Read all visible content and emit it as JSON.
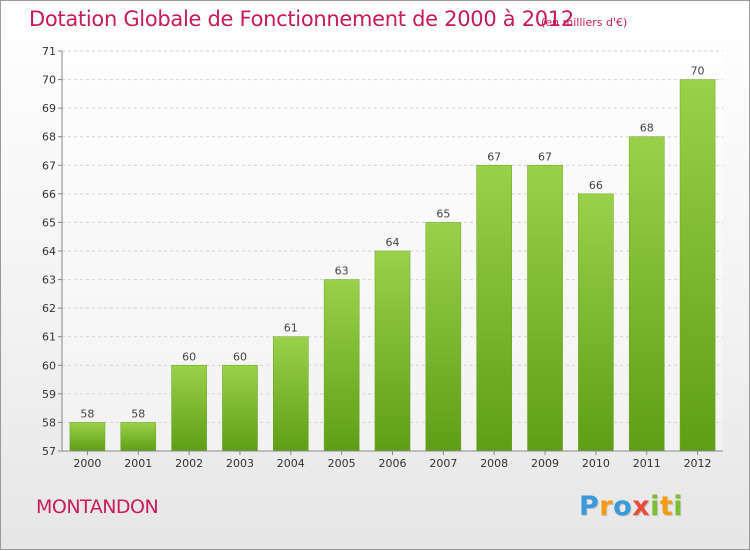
{
  "header": {
    "title": "Dotation Globale de Fonctionnement de 2000 à 2012",
    "subtitle": "(en milliers d'€)"
  },
  "footer": {
    "town": "MONTANDON",
    "logo_letters": [
      "P",
      "r",
      "o",
      "x",
      "i",
      "t",
      "i"
    ],
    "logo_colors": [
      "#3a9ad9",
      "#f39c12",
      "#3a9ad9",
      "#e74c3c",
      "#7cbf2f",
      "#f39c12",
      "#7cbf2f"
    ]
  },
  "chart_data": {
    "type": "bar",
    "title": "Dotation Globale de Fonctionnement de 2000 à 2012",
    "subtitle": "(en milliers d'€)",
    "categories": [
      "2000",
      "2001",
      "2002",
      "2003",
      "2004",
      "2005",
      "2006",
      "2007",
      "2008",
      "2009",
      "2010",
      "2011",
      "2012"
    ],
    "values": [
      58,
      58,
      60,
      60,
      61,
      63,
      64,
      65,
      67,
      67,
      66,
      68,
      70
    ],
    "ylim": [
      57,
      71
    ],
    "yticks": [
      "57",
      "58",
      "59",
      "60",
      "61",
      "62",
      "63",
      "64",
      "65",
      "66",
      "67",
      "68",
      "69",
      "70",
      "71"
    ],
    "grid": true,
    "bar_color_top": "#9ad14b",
    "bar_color_bottom": "#5e9e16"
  }
}
